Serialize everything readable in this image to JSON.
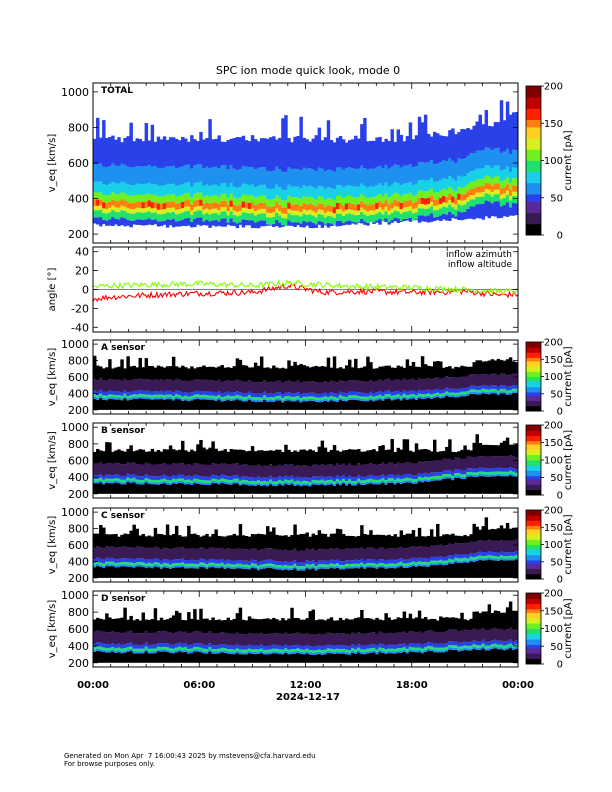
{
  "title": "SPC ion mode quick look, mode 0",
  "colors": {
    "colormap": [
      "#000000",
      "#3a1a55",
      "#5a2a9a",
      "#2a40e8",
      "#1e90f0",
      "#18d0e8",
      "#20e070",
      "#70f020",
      "#d8f020",
      "#ffd020",
      "#ff8010",
      "#ff2000",
      "#c00000",
      "#800000"
    ],
    "azimuth": "#ff0000",
    "altitude": "#80ff00"
  },
  "x_axis": {
    "date_label": "2024-12-17",
    "ticks": [
      "00:00",
      "06:00",
      "12:00",
      "18:00",
      "00:00"
    ]
  },
  "chart_data": [
    {
      "type": "heatmap",
      "panel_label": "TOTAL",
      "ylabel": "v_eq [km/s]",
      "yticks": [
        "200",
        "400",
        "600",
        "800",
        "1000"
      ],
      "ylim": [
        150,
        1050
      ],
      "colorbar": {
        "label": "current [pA]",
        "ticks": [
          "0",
          "50",
          "100",
          "150",
          "200"
        ],
        "range": [
          0,
          200
        ]
      },
      "x_range_hours": [
        0,
        24
      ],
      "core_speed_kms": {
        "x_hours": [
          0,
          3,
          6,
          9,
          12,
          15,
          18,
          21,
          22,
          24
        ],
        "values": [
          370,
          360,
          360,
          350,
          340,
          350,
          370,
          400,
          460,
          440
        ]
      },
      "upper_edge_kms": {
        "x_hours": [
          0,
          6,
          12,
          18,
          22,
          24
        ],
        "values": [
          730,
          740,
          730,
          740,
          800,
          880
        ]
      },
      "lower_edge_kms": {
        "x_hours": [
          0,
          12,
          24
        ],
        "values": [
          250,
          240,
          300
        ]
      }
    },
    {
      "type": "line",
      "ylabel": "angle [°]",
      "yticks": [
        "-40",
        "-20",
        "0",
        "20",
        "40"
      ],
      "ylim": [
        -45,
        45
      ],
      "series": [
        {
          "name": "inflow azimuth",
          "x_hours": [
            0,
            1,
            3,
            6,
            9,
            11,
            13,
            15,
            18,
            21,
            23,
            24
          ],
          "values": [
            -10,
            -8,
            -6,
            -4,
            -3,
            4,
            -3,
            -2,
            -3,
            -2,
            -6,
            -5
          ]
        },
        {
          "name": "inflow altitude",
          "x_hours": [
            0,
            1,
            3,
            6,
            9,
            11,
            13,
            15,
            18,
            21,
            23,
            24
          ],
          "values": [
            3,
            4,
            5,
            6,
            4,
            7,
            5,
            3,
            2,
            0,
            -2,
            -2
          ]
        }
      ]
    },
    {
      "type": "heatmap",
      "panel_label": "A sensor",
      "ylabel": "v_eq [km/s]",
      "yticks": [
        "200",
        "400",
        "600",
        "800",
        "1000"
      ],
      "ylim": [
        150,
        1050
      ],
      "colorbar": {
        "label": "current [pA]",
        "ticks": [
          "0",
          "50",
          "100",
          "150",
          "200"
        ],
        "range": [
          0,
          200
        ]
      },
      "core_speed_kms": {
        "x_hours": [
          0,
          6,
          12,
          18,
          22,
          24
        ],
        "values": [
          370,
          360,
          340,
          370,
          430,
          430
        ]
      }
    },
    {
      "type": "heatmap",
      "panel_label": "B sensor",
      "ylabel": "v_eq [km/s]",
      "yticks": [
        "200",
        "400",
        "600",
        "800",
        "1000"
      ],
      "ylim": [
        150,
        1050
      ],
      "colorbar": {
        "label": "current [pA]",
        "ticks": [
          "0",
          "50",
          "100",
          "150",
          "200"
        ],
        "range": [
          0,
          200
        ]
      },
      "core_speed_kms": {
        "x_hours": [
          0,
          6,
          12,
          18,
          22,
          24
        ],
        "values": [
          370,
          360,
          340,
          370,
          450,
          450
        ]
      }
    },
    {
      "type": "heatmap",
      "panel_label": "C sensor",
      "ylabel": "v_eq [km/s]",
      "yticks": [
        "200",
        "400",
        "600",
        "800",
        "1000"
      ],
      "ylim": [
        150,
        1050
      ],
      "colorbar": {
        "label": "current [pA]",
        "ticks": [
          "0",
          "50",
          "100",
          "150",
          "200"
        ],
        "range": [
          0,
          200
        ]
      },
      "core_speed_kms": {
        "x_hours": [
          0,
          6,
          12,
          18,
          22,
          24
        ],
        "values": [
          370,
          360,
          340,
          370,
          450,
          450
        ]
      }
    },
    {
      "type": "heatmap",
      "panel_label": "D sensor",
      "ylabel": "v_eq [km/s]",
      "yticks": [
        "200",
        "400",
        "600",
        "800",
        "1000"
      ],
      "ylim": [
        150,
        1050
      ],
      "colorbar": {
        "label": "current [pA]",
        "ticks": [
          "0",
          "50",
          "100",
          "150",
          "200"
        ],
        "range": [
          0,
          200
        ]
      },
      "core_speed_kms": {
        "x_hours": [
          0,
          6,
          12,
          18,
          22,
          24
        ],
        "values": [
          370,
          360,
          340,
          360,
          400,
          400
        ]
      }
    }
  ],
  "footer": {
    "line1": "Generated on Mon Apr  7 16:00:43 2025 by mstevens@cfa.harvard.edu",
    "line2": "For browse purposes only."
  }
}
